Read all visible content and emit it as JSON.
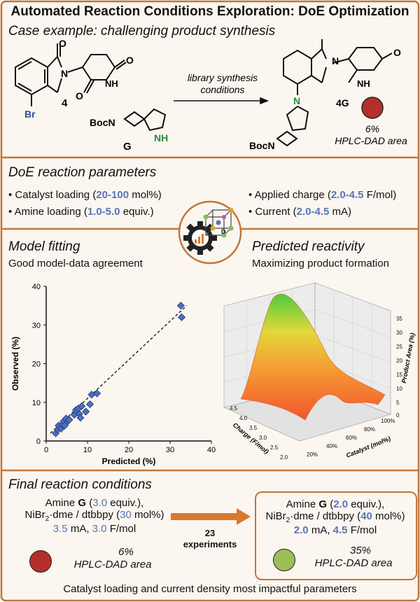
{
  "title": "Automated Reaction Conditions Exploration: DoE Optimization",
  "case": {
    "heading": "Case example: challenging product synthesis",
    "arrow_label_1": "library synthesis",
    "arrow_label_2": "conditions",
    "sm_label": "4",
    "sm_br": "Br",
    "sm_n": "N",
    "sm_nh": "NH",
    "amine_label": "G",
    "amine_boc": "BocN",
    "amine_nh": "NH",
    "product_label": "4G",
    "product_n": "N",
    "product_boc": "BocN",
    "product_yield": "6%",
    "product_metric": "HPLC-DAD area",
    "product_color": "#b3302a"
  },
  "doe": {
    "heading": "DoE reaction parameters",
    "params": [
      {
        "pre": "Catalyst loading (",
        "val": "20-100",
        "post": " mol%)"
      },
      {
        "pre": "Amine loading (",
        "val": "1.0-5.0",
        "post": " equiv.)"
      },
      {
        "pre": "Applied charge (",
        "val": "2.0-4.5",
        "post": " F/mol)"
      },
      {
        "pre": "Current (",
        "val": "2.0-4.5",
        "post": " mA)"
      }
    ]
  },
  "model": {
    "heading": "Model fitting",
    "subtitle": "Good model-data agreement"
  },
  "predicted": {
    "heading": "Predicted reactivity",
    "subtitle": "Maximizing product formation"
  },
  "icon": {
    "dose_label": "D"
  },
  "chart_data": [
    {
      "type": "scatter",
      "title": "",
      "xlabel": "Predicted (%)",
      "ylabel": "Observed (%)",
      "xlim": [
        0,
        40
      ],
      "ylim": [
        0,
        40
      ],
      "xticks": [
        0,
        10,
        20,
        30,
        40
      ],
      "yticks": [
        0,
        10,
        20,
        30,
        40
      ],
      "fit_line": [
        [
          1,
          2
        ],
        [
          34,
          35
        ]
      ],
      "points": [
        [
          2.3,
          2.0
        ],
        [
          2.8,
          3.0
        ],
        [
          3.0,
          4.0
        ],
        [
          3.6,
          3.2
        ],
        [
          3.9,
          4.2
        ],
        [
          4.2,
          5.1
        ],
        [
          4.5,
          4.0
        ],
        [
          4.8,
          5.8
        ],
        [
          5.3,
          5.2
        ],
        [
          5.6,
          5.5
        ],
        [
          6.8,
          6.8
        ],
        [
          7.2,
          8.0
        ],
        [
          7.8,
          8.4
        ],
        [
          8.0,
          7.0
        ],
        [
          8.3,
          6.0
        ],
        [
          8.6,
          9.0
        ],
        [
          9.6,
          7.6
        ],
        [
          10.6,
          9.5
        ],
        [
          11.0,
          12.0
        ],
        [
          12.3,
          12.3
        ],
        [
          32.6,
          35.0
        ],
        [
          32.8,
          32.0
        ]
      ],
      "marker_color": "#4b6ec0"
    },
    {
      "type": "surface",
      "zlabel": "Product Area (%)",
      "xlabel": "Catalyst (mol%)",
      "ylabel": "Charge (F/mol)",
      "zticks": [
        0,
        5,
        10,
        15,
        20,
        25,
        30,
        35
      ],
      "xticks": [
        "20%",
        "40%",
        "60%",
        "80%",
        "100%"
      ],
      "yticks": [
        "2.0",
        "2.5",
        "3.0",
        "3.5",
        "4.0",
        "4.5"
      ],
      "zlim": [
        0,
        35
      ],
      "peak": {
        "catalyst": "20%",
        "charge": "4.5",
        "product_area": 33
      }
    }
  ],
  "final": {
    "heading": "Final reaction conditions",
    "initial": {
      "l1_pre": "Amine ",
      "l1_g": "G",
      "l1_open": " (",
      "l1_val": "3.0",
      "l1_close": " equiv.),",
      "l2_pre": "NiBr",
      "l2_sub": "2",
      "l2_mid": "·dme / dtbbpy (",
      "l2_val": "30",
      "l2_post": " mol%)",
      "l3_v1": "3.5",
      "l3_mid": " mA, ",
      "l3_v2": "3.0",
      "l3_post": " F/mol",
      "yield": "6%",
      "metric": "HPLC-DAD area",
      "color": "#b3302a"
    },
    "arrow": {
      "count": "23",
      "label": "experiments"
    },
    "optimized": {
      "l1_pre": "Amine ",
      "l1_g": "G",
      "l1_open": " (",
      "l1_val": "2.0",
      "l1_close": " equiv.),",
      "l2_pre": "NiBr",
      "l2_sub": "2",
      "l2_mid": "·dme / dtbbpy (",
      "l2_val": "40",
      "l2_post": " mol%)",
      "l3_v1": "2.0",
      "l3_mid": " mA, ",
      "l3_v2": "4.5",
      "l3_post": " F/mol",
      "yield": "35%",
      "metric": "HPLC-DAD area",
      "color": "#9cbf55"
    }
  },
  "footer": "Catalyst loading and current density most impactful parameters",
  "colors": {
    "frame": "#c0763c",
    "accent": "#5b73b8",
    "arrow": "#d9772f"
  }
}
